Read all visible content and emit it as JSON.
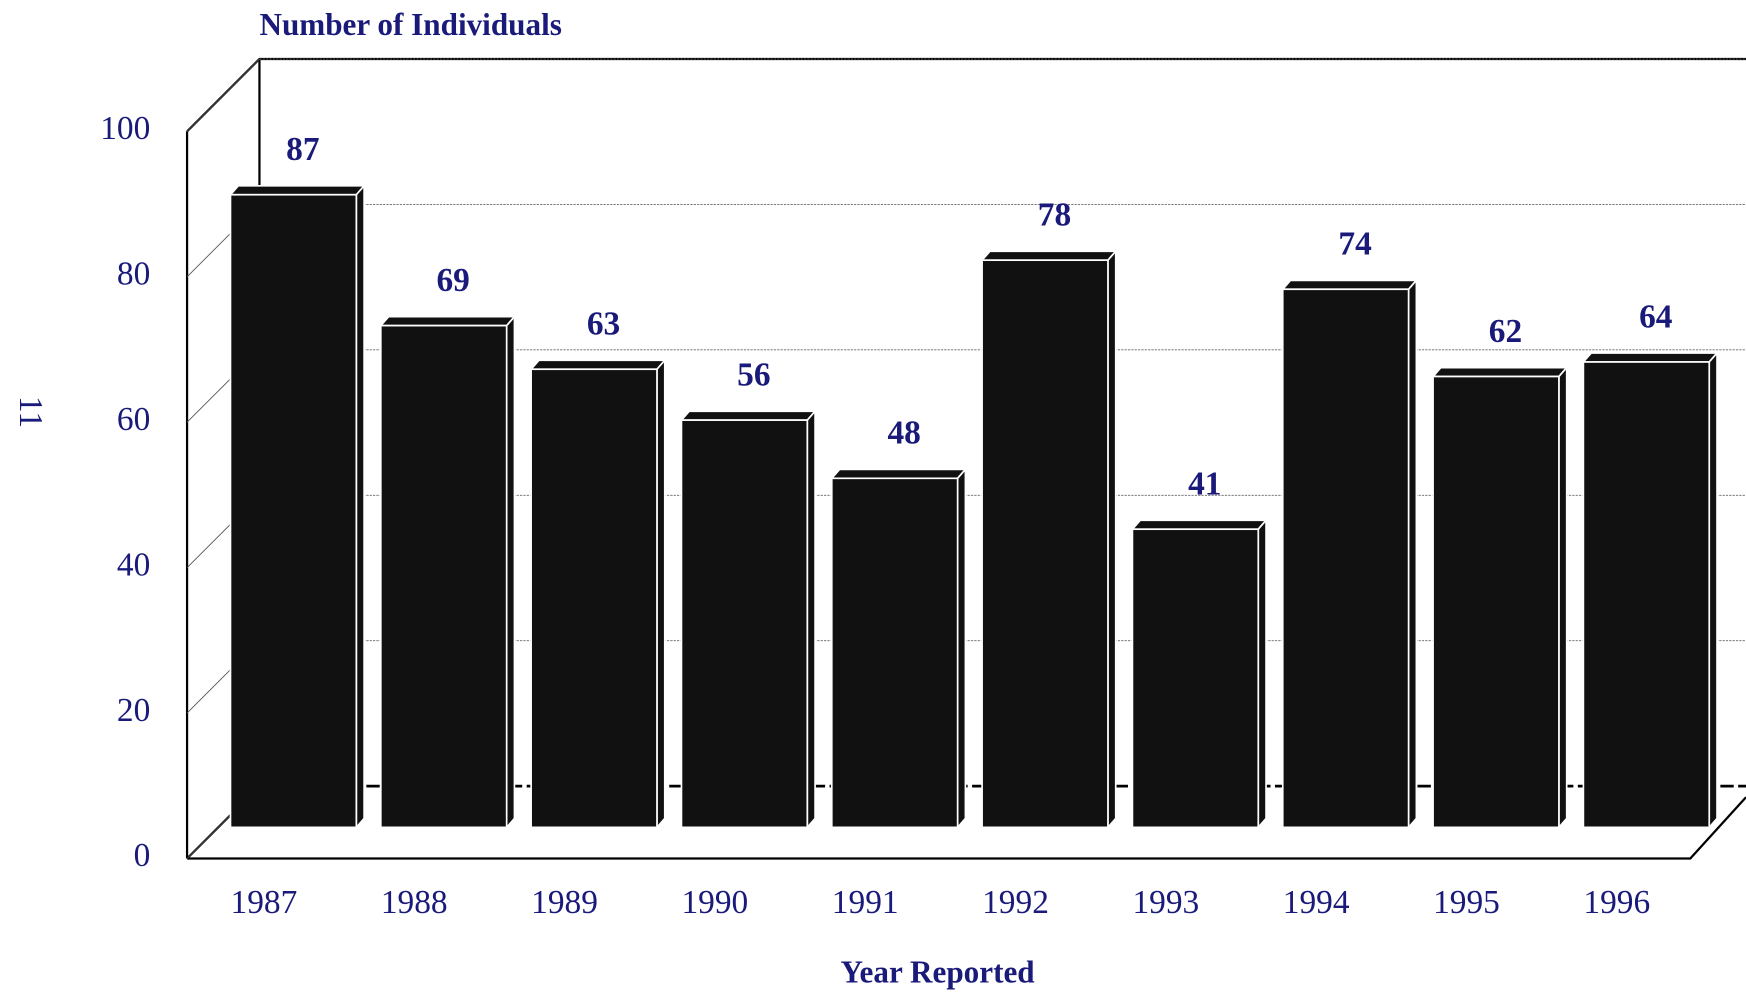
{
  "chart_data": {
    "type": "bar3d",
    "title": "Number of Individuals",
    "y_label": "11",
    "x_label": "Year Reported",
    "categories": [
      "1987",
      "1988",
      "1989",
      "1990",
      "1991",
      "1992",
      "1993",
      "1994",
      "1995",
      "1996"
    ],
    "values": [
      87,
      69,
      63,
      56,
      48,
      78,
      41,
      74,
      62,
      64
    ],
    "color": "#111111",
    "ylim": [
      0,
      100
    ],
    "yticks": [
      0,
      20,
      40,
      60,
      80,
      100
    ],
    "grid": true
  }
}
